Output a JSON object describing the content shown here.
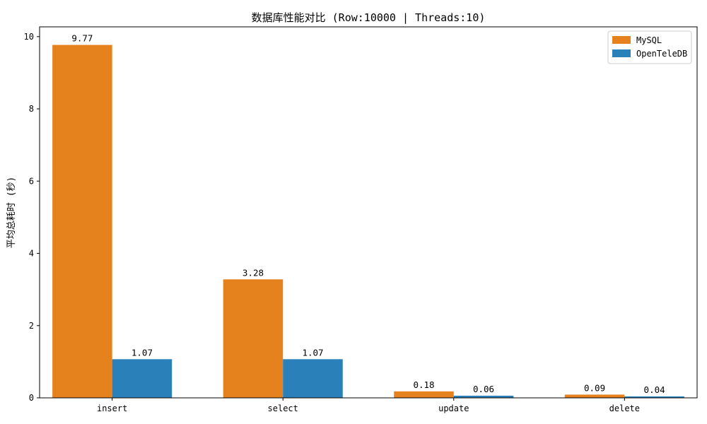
{
  "chart_data": {
    "type": "bar",
    "title": "数据库性能对比 (Row:10000 | Threads:10)",
    "xlabel": "",
    "ylabel": "平均总耗时 (秒)",
    "categories": [
      "insert",
      "select",
      "update",
      "delete"
    ],
    "series": [
      {
        "name": "MySQL",
        "color": "#e6821e",
        "values": [
          9.77,
          3.28,
          0.18,
          0.09
        ],
        "labels": [
          "9.77",
          "3.28",
          "0.18",
          "0.09"
        ]
      },
      {
        "name": "OpenTeleDB",
        "color": "#2a80b9",
        "values": [
          1.07,
          1.07,
          0.06,
          0.04
        ],
        "labels": [
          "1.07",
          "1.07",
          "0.06",
          "0.04"
        ]
      }
    ],
    "ylim": [
      0,
      10.27
    ],
    "yticks": [
      0,
      2,
      4,
      6,
      8,
      10
    ],
    "grid": false,
    "legend_position": "top-right"
  }
}
